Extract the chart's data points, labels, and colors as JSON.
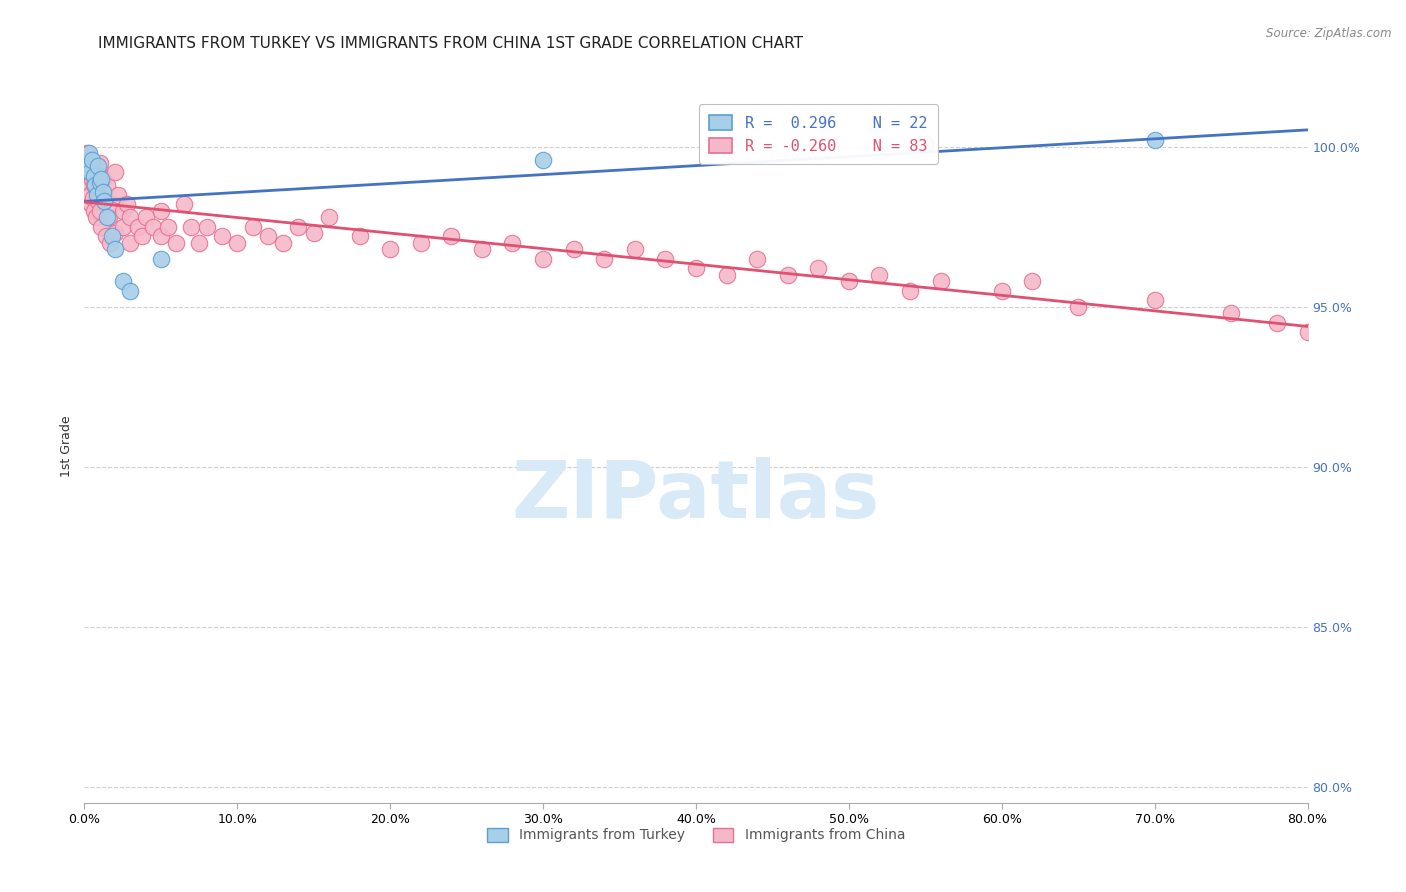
{
  "title": "IMMIGRANTS FROM TURKEY VS IMMIGRANTS FROM CHINA 1ST GRADE CORRELATION CHART",
  "source": "Source: ZipAtlas.com",
  "ylabel_left": "1st Grade",
  "ylabel_right_ticks": [
    80.0,
    85.0,
    90.0,
    95.0,
    100.0
  ],
  "xaxis_ticks": [
    0.0,
    10.0,
    20.0,
    30.0,
    40.0,
    50.0,
    60.0,
    70.0,
    80.0
  ],
  "xlim": [
    0.0,
    80.0
  ],
  "ylim": [
    79.5,
    101.8
  ],
  "legend_blue_label": "R =  0.296    N = 22",
  "legend_pink_label": "R = -0.260    N = 83",
  "legend_label_blue": "Immigrants from Turkey",
  "legend_label_pink": "Immigrants from China",
  "turkey_x": [
    0.1,
    0.2,
    0.3,
    0.4,
    0.5,
    0.6,
    0.7,
    0.8,
    0.9,
    1.0,
    1.1,
    1.2,
    1.3,
    1.5,
    1.8,
    2.0,
    2.5,
    3.0,
    5.0,
    30.0,
    55.0,
    70.0
  ],
  "turkey_y": [
    99.5,
    99.3,
    99.8,
    99.2,
    99.6,
    99.1,
    98.8,
    98.5,
    99.4,
    98.9,
    99.0,
    98.6,
    98.3,
    97.8,
    97.2,
    96.8,
    95.8,
    95.5,
    96.5,
    99.6,
    100.1,
    100.2
  ],
  "china_x": [
    0.1,
    0.15,
    0.2,
    0.25,
    0.3,
    0.35,
    0.4,
    0.45,
    0.5,
    0.55,
    0.6,
    0.65,
    0.7,
    0.75,
    0.8,
    0.85,
    0.9,
    1.0,
    1.0,
    1.1,
    1.1,
    1.2,
    1.3,
    1.4,
    1.5,
    1.6,
    1.7,
    1.8,
    2.0,
    2.0,
    2.2,
    2.5,
    2.5,
    2.8,
    3.0,
    3.0,
    3.5,
    3.8,
    4.0,
    4.5,
    5.0,
    5.0,
    5.5,
    6.0,
    6.5,
    7.0,
    7.5,
    8.0,
    9.0,
    10.0,
    11.0,
    12.0,
    13.0,
    14.0,
    15.0,
    16.0,
    18.0,
    20.0,
    22.0,
    24.0,
    26.0,
    28.0,
    30.0,
    32.0,
    34.0,
    36.0,
    38.0,
    40.0,
    42.0,
    44.0,
    46.0,
    48.0,
    50.0,
    52.0,
    54.0,
    56.0,
    60.0,
    62.0,
    65.0,
    70.0,
    75.0,
    78.0,
    80.0
  ],
  "china_y": [
    99.5,
    99.3,
    99.8,
    98.9,
    99.6,
    98.5,
    99.2,
    98.2,
    99.0,
    98.4,
    98.8,
    98.0,
    99.3,
    97.8,
    99.1,
    98.6,
    98.3,
    99.5,
    98.0,
    99.1,
    97.5,
    99.0,
    98.5,
    97.2,
    98.8,
    97.8,
    97.0,
    98.2,
    99.2,
    97.3,
    98.5,
    98.0,
    97.5,
    98.2,
    97.8,
    97.0,
    97.5,
    97.2,
    97.8,
    97.5,
    98.0,
    97.2,
    97.5,
    97.0,
    98.2,
    97.5,
    97.0,
    97.5,
    97.2,
    97.0,
    97.5,
    97.2,
    97.0,
    97.5,
    97.3,
    97.8,
    97.2,
    96.8,
    97.0,
    97.2,
    96.8,
    97.0,
    96.5,
    96.8,
    96.5,
    96.8,
    96.5,
    96.2,
    96.0,
    96.5,
    96.0,
    96.2,
    95.8,
    96.0,
    95.5,
    95.8,
    95.5,
    95.8,
    95.0,
    95.2,
    94.8,
    94.5,
    94.2
  ],
  "blue_scatter_color": "#a8cfe8",
  "blue_scatter_edge": "#5b9fd4",
  "pink_scatter_color": "#f4b8c8",
  "pink_scatter_edge": "#e87090",
  "blue_line_color": "#4472c4",
  "pink_line_color": "#e05070",
  "grid_color": "#d0d0d0",
  "title_fontsize": 11,
  "axis_label_fontsize": 9,
  "tick_fontsize": 9,
  "right_tick_color": "#4472c4",
  "watermark_color": "#d8eaf8",
  "watermark_text": "ZIPatlas"
}
